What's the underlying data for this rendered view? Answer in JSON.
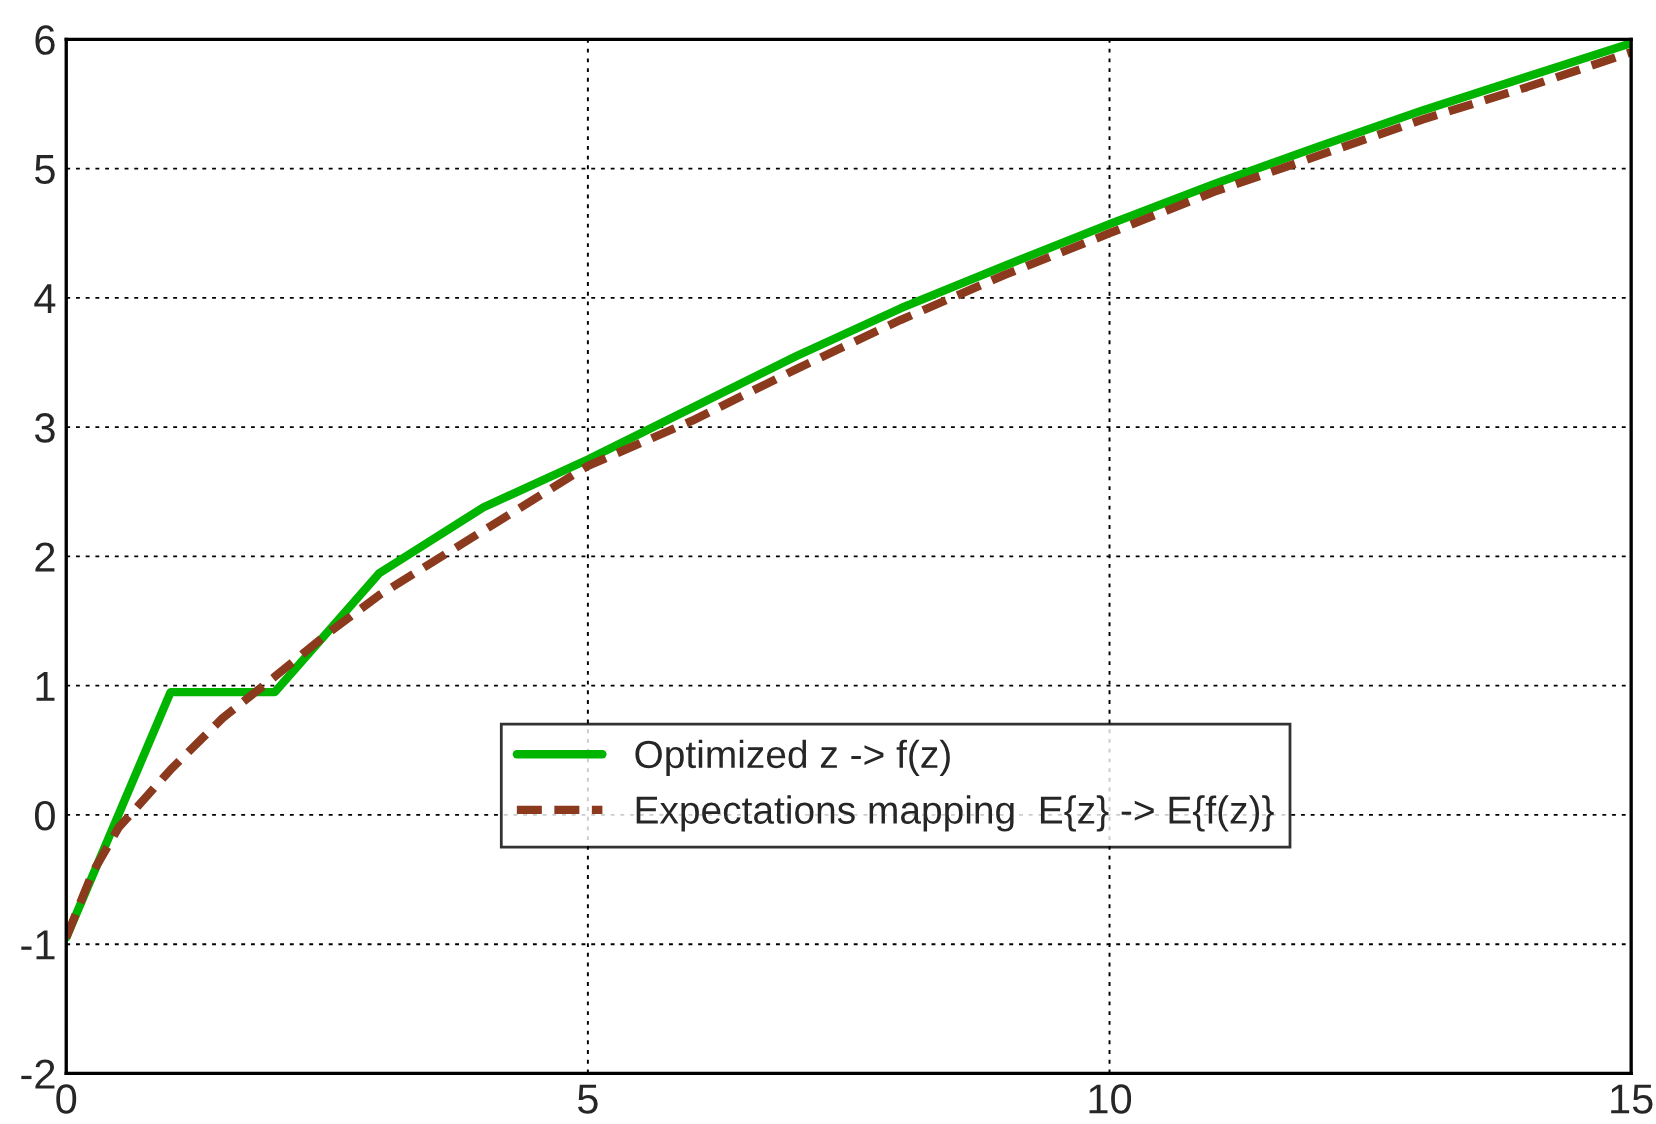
{
  "chart_data": {
    "type": "line",
    "xlim": [
      0,
      15
    ],
    "ylim": [
      -2,
      6
    ],
    "xticks": [
      0,
      5,
      10,
      15
    ],
    "yticks": [
      -2,
      -1,
      0,
      1,
      2,
      3,
      4,
      5,
      6
    ],
    "grid": true,
    "legend": "bottom",
    "series": [
      {
        "name": "Optimized z -> f(z)",
        "color": "#00b400",
        "line_style": "solid",
        "x": [
          0,
          1,
          2,
          3,
          4,
          5,
          6,
          7,
          8,
          9,
          10,
          11,
          12,
          13,
          14,
          15
        ],
        "values": [
          -0.95,
          0.95,
          0.95,
          1.87,
          2.38,
          2.75,
          3.15,
          3.55,
          3.92,
          4.25,
          4.57,
          4.88,
          5.17,
          5.45,
          5.71,
          5.97
        ]
      },
      {
        "name": "Expectations mapping  E{z} -> E{f(z)}",
        "color": "#8b3a1e",
        "line_style": "dashed",
        "x": [
          0,
          0.25,
          0.5,
          1,
          1.5,
          2,
          2.5,
          3,
          4,
          5,
          6,
          7,
          8,
          9,
          10,
          11,
          12,
          13,
          14,
          15
        ],
        "values": [
          -0.95,
          -0.45,
          -0.1,
          0.35,
          0.75,
          1.07,
          1.4,
          1.7,
          2.2,
          2.7,
          3.05,
          3.45,
          3.83,
          4.18,
          4.5,
          4.82,
          5.1,
          5.38,
          5.63,
          5.9
        ]
      }
    ]
  }
}
